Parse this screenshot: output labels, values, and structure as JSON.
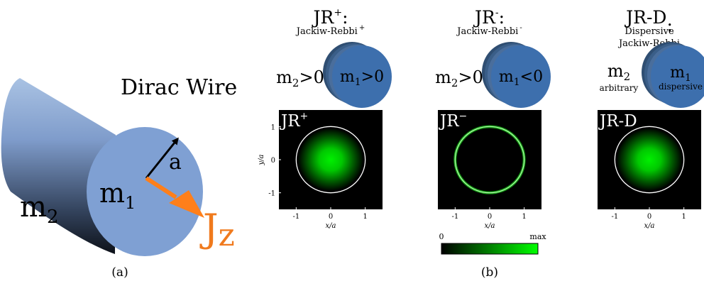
{
  "panel_a": {
    "title": "Dirac Wire",
    "outer_mass": "m",
    "outer_mass_sub": "2",
    "inner_mass": "m",
    "inner_mass_sub": "1",
    "radius_label": "a",
    "current_label": "J",
    "current_sub": "z",
    "caption": "(a)"
  },
  "panel_b_caption": "(b)",
  "columns": [
    {
      "id": "jr-plus",
      "title": "JR",
      "title_sup": "+",
      "title_suffix": ":",
      "subtitle_lines": [
        "Jackiw-Rebbi"
      ],
      "subtitle_sup": "+",
      "outer_mass": "m",
      "outer_mass_sub": "2",
      "outer_mass_rel": ">0",
      "outer_note": "",
      "inner_mass": "m",
      "inner_mass_sub": "1",
      "inner_mass_rel": ">0",
      "inner_note": "",
      "plot_label": "JR",
      "plot_label_sup": "+",
      "profile": "gaussian"
    },
    {
      "id": "jr-minus",
      "title": "JR",
      "title_sup": "-",
      "title_suffix": ":",
      "subtitle_lines": [
        "Jackiw-Rebbi"
      ],
      "subtitle_sup": "-",
      "outer_mass": "m",
      "outer_mass_sub": "2",
      "outer_mass_rel": ">0",
      "outer_note": "",
      "inner_mass": "m",
      "inner_mass_sub": "1",
      "inner_mass_rel": "<0",
      "inner_note": "",
      "plot_label": "JR",
      "plot_label_sup": "−",
      "profile": "ring"
    },
    {
      "id": "jr-d",
      "title": "JR-D",
      "title_sup": "",
      "title_suffix": ":",
      "subtitle_lines": [
        "Dispersive",
        "Jackiw-Rebbi"
      ],
      "subtitle_sup": "",
      "outer_mass": "m",
      "outer_mass_sub": "2",
      "outer_mass_rel": "",
      "outer_note": "arbitrary",
      "inner_mass": "m",
      "inner_mass_sub": "1",
      "inner_mass_rel": "",
      "inner_note": "dispersive",
      "plot_label": "JR-D",
      "plot_label_sup": "",
      "profile": "gaussian"
    }
  ],
  "axes": {
    "xlabel": "x/a",
    "ylabel": "y/a",
    "x_ticks": [
      "-1",
      "0",
      "1"
    ],
    "y_ticks": [
      "1",
      "0",
      "-1"
    ],
    "xlim": [
      -1.5,
      1.5
    ],
    "ylim": [
      -1.5,
      1.5
    ],
    "wire_radius": 1
  },
  "colorbar": {
    "min_label": "0",
    "max_label": "max",
    "colors": [
      "#000000",
      "#00ff00"
    ]
  }
}
